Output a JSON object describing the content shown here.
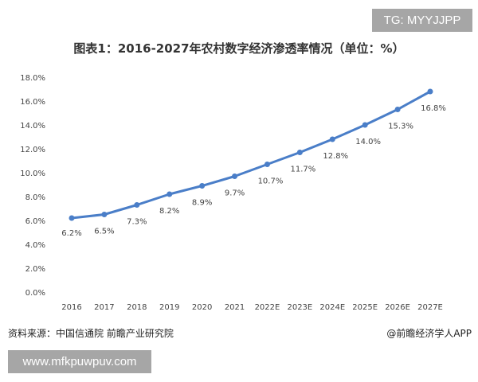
{
  "watermark_top": "TG: MYYJJPP",
  "watermark_bottom": "www.mfkpuwpuv.com",
  "source": "资料来源：中国信通院 前瞻产业研究院",
  "brand": "@前瞻经济学人APP",
  "chart_data": {
    "type": "line",
    "title": "图表1：2016-2027年农村数字经济渗透率情况（单位：%）",
    "categories": [
      "2016",
      "2017",
      "2018",
      "2019",
      "2020",
      "2021",
      "2022E",
      "2023E",
      "2024E",
      "2025E",
      "2026E",
      "2027E"
    ],
    "values": [
      6.2,
      6.5,
      7.3,
      8.2,
      8.9,
      9.7,
      10.7,
      11.7,
      12.8,
      14.0,
      15.3,
      16.8
    ],
    "data_labels": [
      "6.2%",
      "6.5%",
      "7.3%",
      "8.2%",
      "8.9%",
      "9.7%",
      "10.7%",
      "11.7%",
      "12.8%",
      "14.0%",
      "15.3%",
      "16.8%"
    ],
    "yticks": [
      "0.0%",
      "2.0%",
      "4.0%",
      "6.0%",
      "8.0%",
      "10.0%",
      "12.0%",
      "14.0%",
      "16.0%",
      "18.0%"
    ],
    "ylim": [
      0,
      18
    ],
    "grid": false,
    "line_color": "#4a7ec8"
  }
}
